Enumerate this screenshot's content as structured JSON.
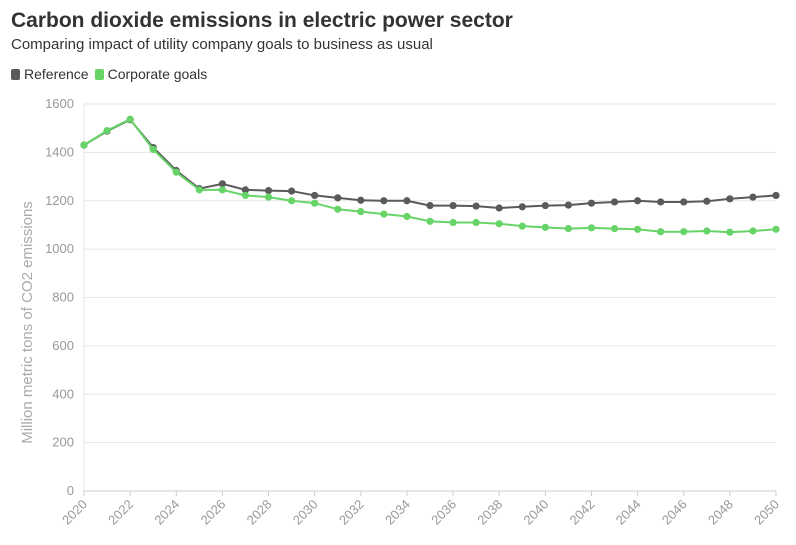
{
  "chart_data": {
    "type": "line",
    "title": "Carbon dioxide emissions in electric power sector",
    "subtitle": "Comparing impact of utility company goals to business as usual",
    "ylabel": "Million metric tons of CO2 emissions",
    "xlabel": "",
    "xlim": [
      2020,
      2050
    ],
    "ylim": [
      0,
      1600
    ],
    "yticks": [
      0,
      200,
      400,
      600,
      800,
      1000,
      1200,
      1400,
      1600
    ],
    "xticks": [
      2020,
      2022,
      2024,
      2026,
      2028,
      2030,
      2032,
      2034,
      2036,
      2038,
      2040,
      2042,
      2044,
      2046,
      2048,
      2050
    ],
    "grid": true,
    "legend_position": "top-left",
    "x": [
      2020,
      2021,
      2022,
      2023,
      2024,
      2025,
      2026,
      2027,
      2028,
      2029,
      2030,
      2031,
      2032,
      2033,
      2034,
      2035,
      2036,
      2037,
      2038,
      2039,
      2040,
      2041,
      2042,
      2043,
      2044,
      2045,
      2046,
      2047,
      2048,
      2049,
      2050
    ],
    "series": [
      {
        "name": "Reference",
        "color": "#5a5a5a",
        "values": [
          1430,
          1488,
          1535,
          1420,
          1325,
          1250,
          1270,
          1245,
          1242,
          1240,
          1222,
          1212,
          1202,
          1200,
          1200,
          1180,
          1180,
          1178,
          1170,
          1175,
          1180,
          1182,
          1190,
          1195,
          1200,
          1195,
          1195,
          1198,
          1208,
          1215,
          1222
        ]
      },
      {
        "name": "Corporate goals",
        "color": "#66d466",
        "values": [
          1430,
          1490,
          1537,
          1412,
          1318,
          1245,
          1245,
          1222,
          1215,
          1200,
          1190,
          1165,
          1155,
          1145,
          1135,
          1115,
          1110,
          1110,
          1105,
          1095,
          1090,
          1085,
          1088,
          1085,
          1082,
          1072,
          1072,
          1075,
          1070,
          1075,
          1082
        ]
      }
    ]
  }
}
